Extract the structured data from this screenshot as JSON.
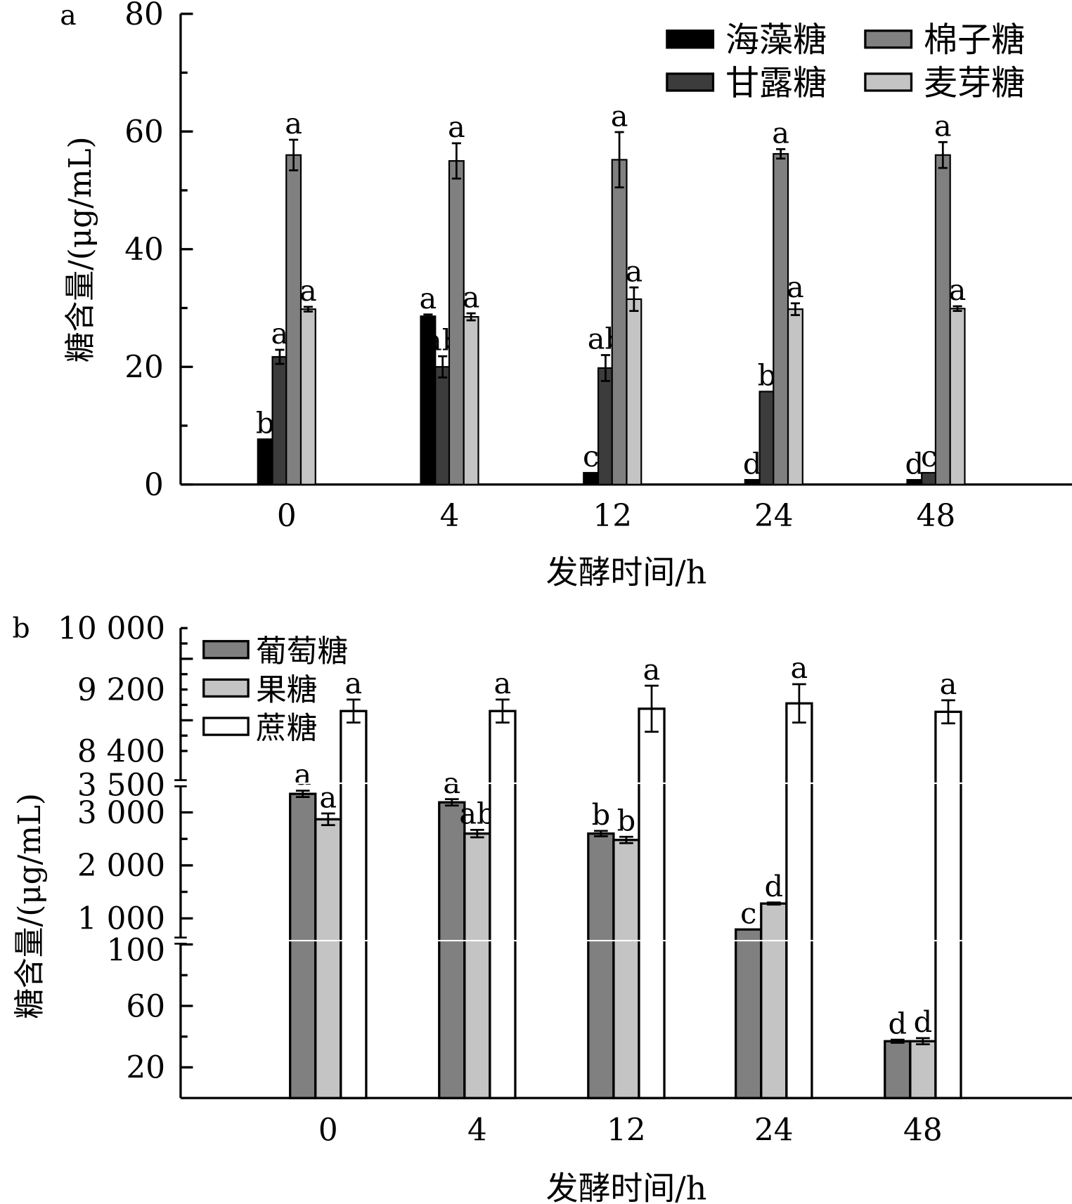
{
  "chart_data": [
    {
      "type": "bar",
      "panel_label": "a",
      "xlabel": "发酵时间/h",
      "ylabel": "糖含量/(μg/mL)",
      "categories": [
        "0",
        "4",
        "12",
        "24",
        "48"
      ],
      "ylim": [
        0,
        80
      ],
      "yticks": [
        "0",
        "20",
        "40",
        "60",
        "80"
      ],
      "legend_position": "top-right",
      "series": [
        {
          "name": "海藻糖",
          "color": "#000000",
          "values": [
            7.7,
            28.6,
            2.0,
            0.8,
            0.8
          ],
          "errors": [
            0,
            0.3,
            0,
            0,
            0
          ],
          "letters": [
            "b",
            "a",
            "c",
            "d",
            "d"
          ]
        },
        {
          "name": "甘露糖",
          "color": "#3c3c3c",
          "values": [
            21.7,
            20.0,
            19.8,
            15.8,
            2.0
          ],
          "errors": [
            1.2,
            1.8,
            2.2,
            0.2,
            0.2
          ],
          "letters": [
            "a",
            "ab",
            "ab",
            "b",
            "c"
          ]
        },
        {
          "name": "棉子糖",
          "color": "#808080",
          "values": [
            56.0,
            55.0,
            55.2,
            56.2,
            56.0
          ],
          "errors": [
            2.6,
            3.0,
            4.7,
            0.8,
            2.2
          ],
          "letters": [
            "a",
            "a",
            "a",
            "a",
            "a"
          ]
        },
        {
          "name": "麦芽糖",
          "color": "#c4c4c4",
          "values": [
            29.8,
            28.5,
            31.5,
            29.8,
            29.9
          ],
          "errors": [
            0.4,
            0.6,
            2.0,
            1.0,
            0.4
          ],
          "letters": [
            "a",
            "a",
            "a",
            "a",
            "a"
          ]
        }
      ]
    },
    {
      "type": "bar",
      "panel_label": "b",
      "xlabel": "发酵时间/h",
      "ylabel": "糖含量/(μg/mL)",
      "categories": [
        "0",
        "4",
        "12",
        "24",
        "48"
      ],
      "axis_breaks": [
        [
          100,
          1000
        ],
        [
          3500,
          8400
        ]
      ],
      "yticks": [
        "20",
        "60",
        "100",
        "1 000",
        "2 000",
        "3 000",
        "3 500",
        "8 400",
        "9 200",
        "10 000"
      ],
      "legend_position": "top-left",
      "series": [
        {
          "name": "葡萄糖",
          "color": "#808080",
          "values": [
            3350,
            3190,
            2600,
            790,
            37
          ],
          "errors": [
            60,
            60,
            50,
            0,
            1
          ],
          "letters": [
            "a",
            "a",
            "b",
            "c",
            "d"
          ]
        },
        {
          "name": "果糖",
          "color": "#c4c4c4",
          "values": [
            2870,
            2600,
            2480,
            1280,
            37
          ],
          "errors": [
            110,
            70,
            60,
            20,
            2
          ],
          "letters": [
            "a",
            "ab",
            "b",
            "d",
            "d"
          ]
        },
        {
          "name": "蔗糖",
          "color": "#ffffff",
          "values": [
            8920,
            8920,
            8950,
            9020,
            8910
          ],
          "errors": [
            150,
            150,
            300,
            250,
            150
          ],
          "letters": [
            "a",
            "a",
            "a",
            "a",
            "a"
          ]
        }
      ]
    }
  ]
}
